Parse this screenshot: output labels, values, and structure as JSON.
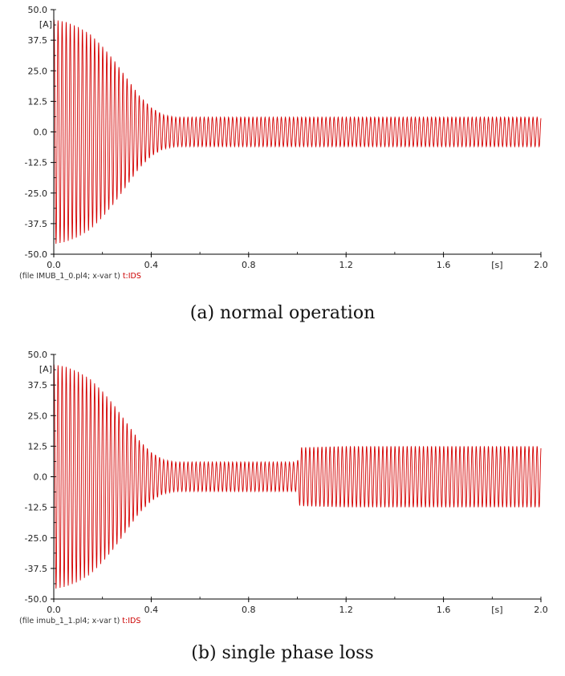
{
  "colors": {
    "trace": "#d40000",
    "axis": "#000000",
    "text": "#222222"
  },
  "chart_data": [
    {
      "type": "line",
      "caption": "(a) normal operation",
      "y_unit": "[A]",
      "x_unit": "[s]",
      "xlim": [
        0.0,
        2.0
      ],
      "ylim": [
        -50.0,
        50.0
      ],
      "x_ticks": [
        "0.0",
        "0.4",
        "0.8",
        "1.2",
        "1.6",
        "2.0"
      ],
      "y_ticks": [
        "50.0",
        "37.5",
        "25.0",
        "12.5",
        "0.0",
        "-12.5",
        "-25.0",
        "-37.5",
        "-50.0"
      ],
      "footer_file": "(file IMUB_1_0.pl4; x-var t)",
      "footer_var": "t:IDS",
      "grid": false,
      "series": [
        {
          "name": "t:IDS",
          "frequency_hz": 60,
          "x": [
            0.0,
            0.05,
            0.1,
            0.15,
            0.2,
            0.25,
            0.3,
            0.35,
            0.4,
            0.45,
            0.5,
            0.6,
            0.8,
            1.0,
            1.2,
            1.4,
            1.6,
            1.8,
            2.0
          ],
          "envelope": [
            46,
            45,
            43,
            40,
            35,
            29,
            22,
            15,
            10,
            7,
            6,
            6,
            6,
            6,
            6,
            6,
            6,
            6,
            6
          ]
        }
      ]
    },
    {
      "type": "line",
      "caption": "(b) single phase loss",
      "y_unit": "[A]",
      "x_unit": "[s]",
      "xlim": [
        0.0,
        2.0
      ],
      "ylim": [
        -50.0,
        50.0
      ],
      "x_ticks": [
        "0.0",
        "0.4",
        "0.8",
        "1.2",
        "1.6",
        "2.0"
      ],
      "y_ticks": [
        "50.0",
        "37.5",
        "25.0",
        "12.5",
        "0.0",
        "-12.5",
        "-25.0",
        "-37.5",
        "-50.0"
      ],
      "footer_file": "(file imub_1_1.pl4; x-var t)",
      "footer_var": "t:IDS",
      "grid": false,
      "series": [
        {
          "name": "t:IDS",
          "frequency_hz": 60,
          "x": [
            0.0,
            0.05,
            0.1,
            0.15,
            0.2,
            0.25,
            0.3,
            0.35,
            0.4,
            0.45,
            0.5,
            0.6,
            0.8,
            1.0,
            1.01,
            1.2,
            1.4,
            1.6,
            1.8,
            2.0
          ],
          "envelope": [
            46,
            45,
            43,
            40,
            35,
            29,
            22,
            15,
            10,
            7,
            6,
            6,
            6,
            6,
            12,
            12.5,
            12.5,
            12.5,
            12.5,
            12.5
          ]
        }
      ]
    }
  ]
}
